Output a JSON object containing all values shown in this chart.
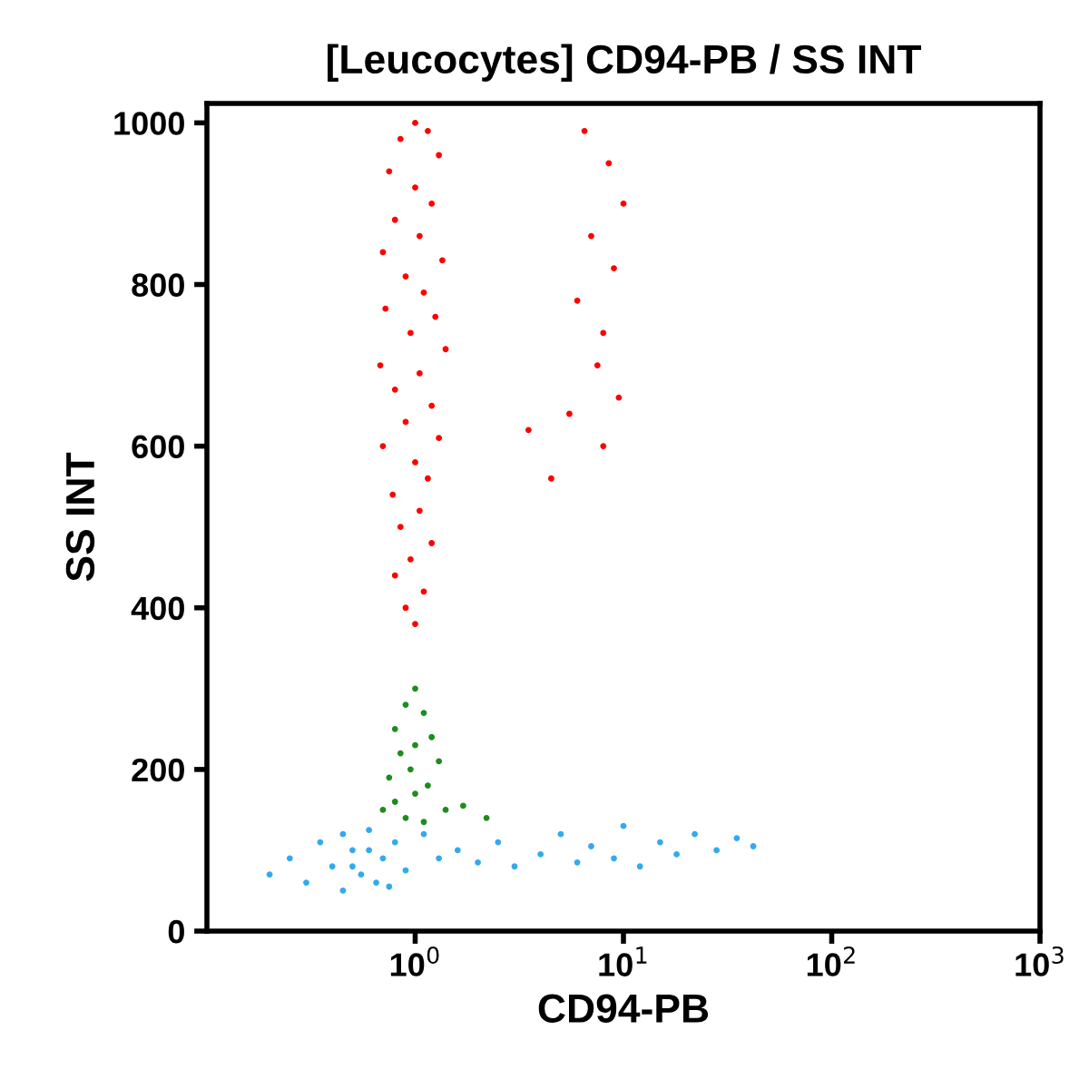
{
  "chart_data": {
    "type": "scatter",
    "title": "[Leucocytes] CD94-PB / SS INT",
    "xlabel": "CD94-PB",
    "ylabel": "SS INT",
    "log": "x",
    "grid": false,
    "legend": false,
    "marker": "circle",
    "xlim": [
      0.1,
      1000
    ],
    "xticks": [
      {
        "value": 1,
        "label": "10$^{0}$"
      },
      {
        "value": 10,
        "label": "10$^{1}$"
      },
      {
        "value": 100,
        "label": "10$^{2}$"
      },
      {
        "value": 1000,
        "label": "10$^{3}$"
      }
    ],
    "ylim": [
      0,
      1024
    ],
    "yticks": [
      0,
      200,
      400,
      600,
      800,
      1000
    ],
    "series": [
      {
        "color": "#ff0000",
        "x": [
          1.0,
          0.85,
          1.15,
          1.3,
          0.75,
          1.0,
          1.2,
          0.8,
          1.05,
          0.7,
          1.35,
          0.9,
          1.1,
          0.72,
          1.25,
          0.95,
          1.4,
          0.68,
          1.05,
          0.8,
          1.2,
          0.9,
          1.3,
          0.7,
          1.0,
          1.15,
          0.78,
          1.05,
          0.85,
          1.2,
          0.95,
          0.8,
          1.1,
          0.9,
          1.0,
          6.5,
          8.5,
          10,
          7,
          9,
          6,
          8,
          7.5,
          9.5,
          5.5,
          8,
          3.5,
          4.5
        ],
        "values": [
          1000,
          980,
          990,
          960,
          940,
          920,
          900,
          880,
          860,
          840,
          830,
          810,
          790,
          770,
          760,
          740,
          720,
          700,
          690,
          670,
          650,
          630,
          610,
          600,
          580,
          560,
          540,
          520,
          500,
          480,
          460,
          440,
          420,
          400,
          380,
          990,
          950,
          900,
          860,
          820,
          780,
          740,
          700,
          660,
          640,
          600,
          620,
          560
        ]
      },
      {
        "color": "#1e8c1e",
        "x": [
          1.0,
          0.9,
          1.1,
          0.8,
          1.2,
          1.0,
          0.85,
          1.3,
          0.95,
          0.75,
          1.15,
          1.0,
          0.8,
          1.4,
          0.9,
          1.1,
          1.7,
          2.2,
          0.7
        ],
        "values": [
          300,
          280,
          270,
          250,
          240,
          230,
          220,
          210,
          200,
          190,
          180,
          170,
          160,
          150,
          140,
          135,
          155,
          140,
          150
        ]
      },
      {
        "color": "#33aaee",
        "x": [
          0.2,
          0.25,
          0.3,
          0.35,
          0.4,
          0.45,
          0.5,
          0.55,
          0.6,
          0.65,
          0.7,
          0.5,
          0.6,
          0.8,
          0.9,
          1.1,
          1.3,
          1.6,
          2,
          2.5,
          3,
          4,
          5,
          6,
          7,
          9,
          10,
          12,
          15,
          18,
          22,
          28,
          35,
          42,
          0.45,
          0.75
        ],
        "values": [
          70,
          90,
          60,
          110,
          80,
          50,
          100,
          70,
          125,
          60,
          90,
          80,
          100,
          110,
          75,
          120,
          90,
          100,
          85,
          110,
          80,
          95,
          120,
          85,
          105,
          90,
          130,
          80,
          110,
          95,
          120,
          100,
          115,
          105,
          120,
          55
        ]
      }
    ]
  }
}
